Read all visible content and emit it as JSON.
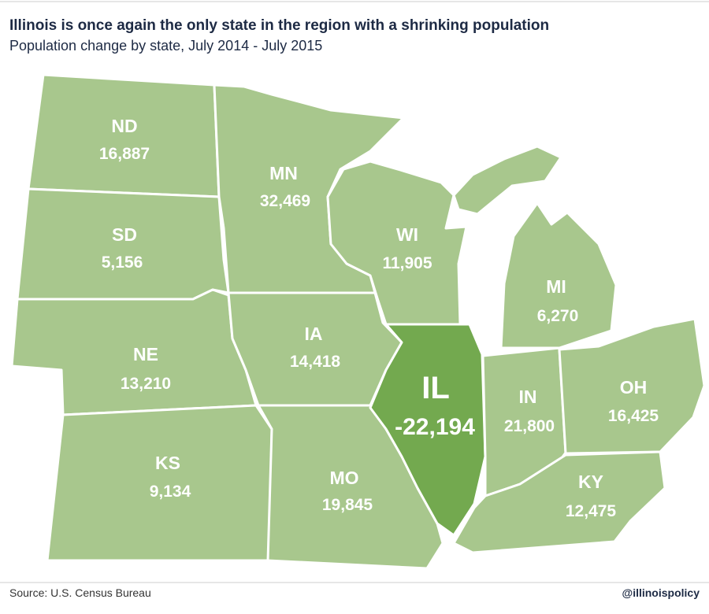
{
  "header": {
    "title": "Illinois is once again the only state in the region with a shrinking population",
    "subtitle": "Population change by state, July 2014 - July 2015"
  },
  "states": [
    {
      "abbr": "ND",
      "value": "16,887"
    },
    {
      "abbr": "SD",
      "value": "5,156"
    },
    {
      "abbr": "NE",
      "value": "13,210"
    },
    {
      "abbr": "KS",
      "value": "9,134"
    },
    {
      "abbr": "MN",
      "value": "32,469"
    },
    {
      "abbr": "IA",
      "value": "14,418"
    },
    {
      "abbr": "MO",
      "value": "19,845"
    },
    {
      "abbr": "WI",
      "value": "11,905"
    },
    {
      "abbr": "IL",
      "value": "-22,194"
    },
    {
      "abbr": "IN",
      "value": "21,800"
    },
    {
      "abbr": "MI",
      "value": "6,270"
    },
    {
      "abbr": "OH",
      "value": "16,425"
    },
    {
      "abbr": "KY",
      "value": "12,475"
    }
  ],
  "footer": {
    "source": "Source: U.S. Census Bureau",
    "handle": "@illinoispolicy"
  }
}
